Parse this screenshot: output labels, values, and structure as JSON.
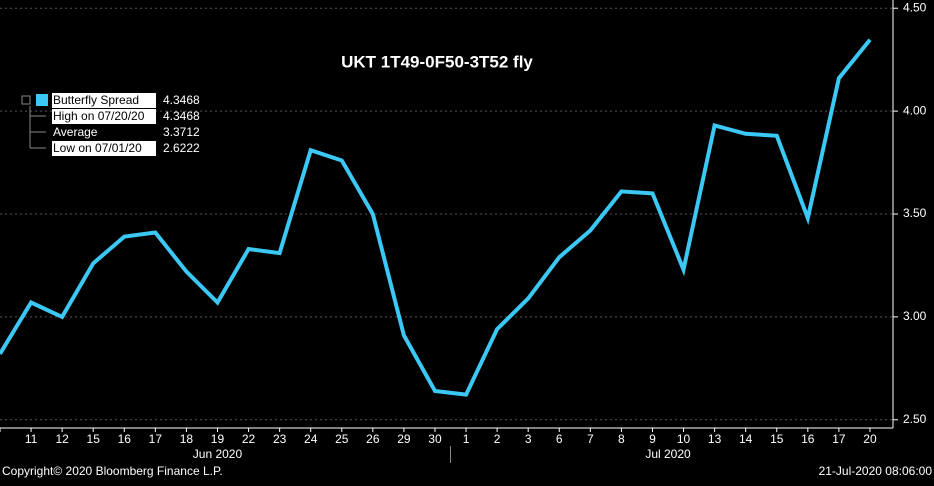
{
  "chart_data": {
    "type": "line",
    "title": "UKT 1T49-0F50-3T52 fly",
    "categories": [
      null,
      "11",
      "12",
      "15",
      "16",
      "17",
      "18",
      "19",
      "22",
      "23",
      "24",
      "25",
      "26",
      "29",
      "30",
      "1",
      "2",
      "3",
      "6",
      "7",
      "8",
      "9",
      "10",
      "13",
      "14",
      "15",
      "16",
      "17",
      "20"
    ],
    "month_labels": [
      "Jun 2020",
      "Jul 2020"
    ],
    "series": [
      {
        "name": "Butterfly Spread",
        "color": "#3cc8f5",
        "values": [
          2.82,
          3.07,
          3.0,
          3.26,
          3.39,
          3.41,
          3.22,
          3.07,
          3.33,
          3.31,
          3.81,
          3.76,
          3.5,
          2.91,
          2.64,
          2.6222,
          2.94,
          3.09,
          3.29,
          3.42,
          3.61,
          3.6,
          3.23,
          3.93,
          3.89,
          3.88,
          3.48,
          4.16,
          4.3468
        ]
      }
    ],
    "legend": [
      {
        "label": "Butterfly Spread",
        "value": 4.3468
      },
      {
        "label": "High on 07/20/20",
        "value": 4.3468
      },
      {
        "label": "Average",
        "value": 3.3712
      },
      {
        "label": "Low on 07/01/20",
        "value": 2.6222
      }
    ],
    "ylim": [
      2.46,
      4.54
    ],
    "yticks": [
      {
        "value": 2.5,
        "label": "2.50"
      },
      {
        "value": 3.0,
        "label": "3.00"
      },
      {
        "value": 3.5,
        "label": "3.50"
      },
      {
        "value": 4.0,
        "label": "4.00"
      },
      {
        "value": 4.5,
        "label": "4.50"
      }
    ],
    "grid": true,
    "footer_left": "Copyright© 2020 Bloomberg Finance L.P.",
    "footer_right": "21-Jul-2020 08:06:00"
  }
}
